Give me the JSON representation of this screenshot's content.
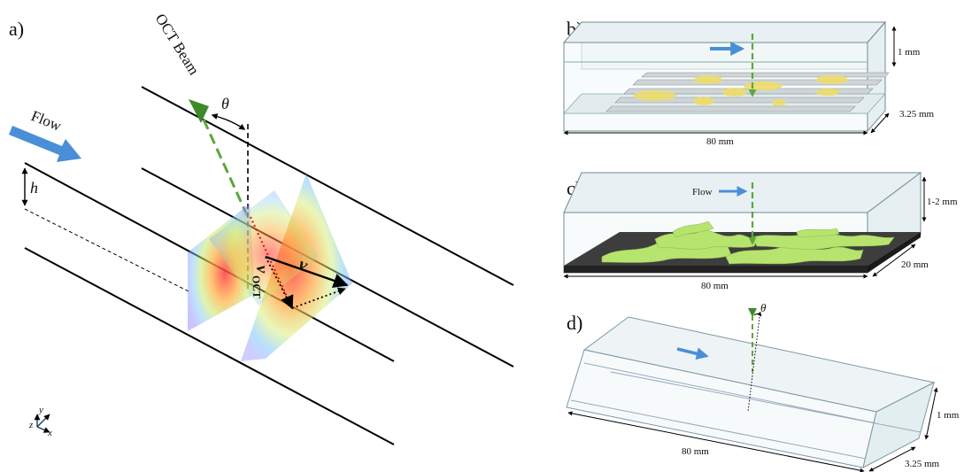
{
  "panels": {
    "a": {
      "label": "a)",
      "beam_label": "OCT Beam",
      "flow_label": "Flow",
      "theta": "θ",
      "h": "h",
      "v": "v",
      "v_oct": "v",
      "v_oct_sub": "OCT",
      "axes": {
        "y": "y",
        "z": "z",
        "x": "x"
      }
    },
    "b": {
      "label": "b)",
      "height": "1 mm",
      "depth": "3.25 mm",
      "length": "80 mm"
    },
    "c": {
      "label": "c)",
      "flow_label": "Flow",
      "height": "1-2 mm",
      "depth": "20 mm",
      "length": "80 mm"
    },
    "d": {
      "label": "d)",
      "theta": "θ",
      "height": "1 mm",
      "depth": "3.25 mm",
      "length": "80 mm"
    }
  },
  "colors": {
    "beam": "#5aa83a",
    "flow": "#4a8fd6",
    "biofilm_b": "#ecdc6a",
    "biofilm_c": "#b7e36f",
    "substrate_c": "#3d3d3d"
  }
}
